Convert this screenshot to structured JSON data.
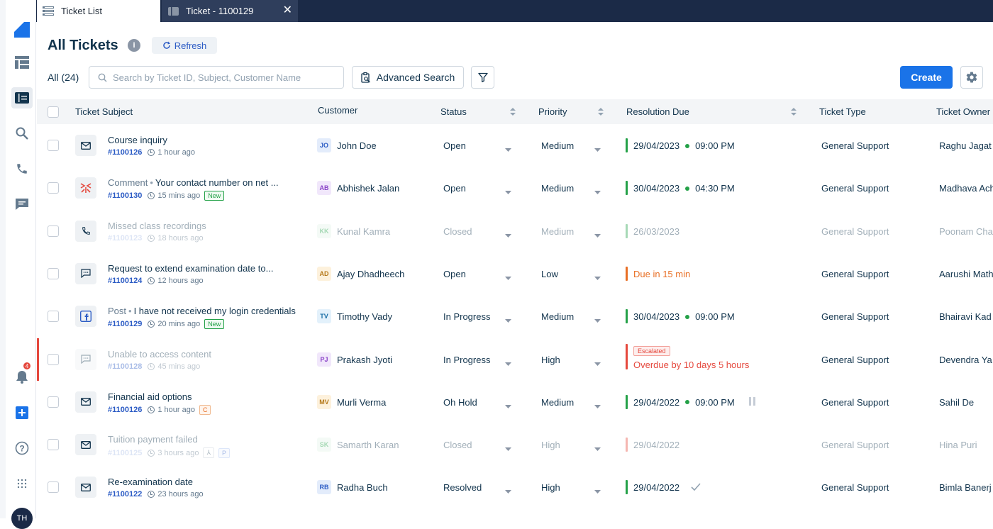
{
  "tabs": {
    "ticket_list": "Ticket List",
    "ticket_detail": "Ticket - 1100129"
  },
  "sidebar": {
    "notification_count": "4",
    "user_initials": "TH",
    "items": [
      "logo-icon",
      "dashboard-icon",
      "tickets-icon",
      "search-icon",
      "phone-icon",
      "chat-icon",
      "bell-icon",
      "add-icon",
      "help-icon",
      "apps-grid-icon"
    ]
  },
  "header": {
    "title": "All Tickets",
    "refresh_label": "Refresh",
    "count_label": "All (24)",
    "search_placeholder": "Search by Ticket ID, Subject, Customer Name",
    "advanced_search_label": "Advanced Search",
    "create_label": "Create"
  },
  "table": {
    "columns": {
      "subject": "Ticket Subject",
      "customer": "Customer",
      "status": "Status",
      "priority": "Priority",
      "due": "Resolution Due",
      "type": "Ticket Type",
      "owner": "Ticket Owner"
    },
    "rows": [
      {
        "icon": "mail-icon",
        "prefix": "",
        "subject": "Course inquiry",
        "id": "#1100126",
        "time": "1 hour ago",
        "tags": [],
        "cust_initials": "JO",
        "customer": "John Doe",
        "status": "Open",
        "priority": "Medium",
        "due_date": "29/04/2023",
        "due_time": "09:00 PM",
        "due_color": "#24a148",
        "ticket_type": "General Support",
        "owner": "Raghu Jagat"
      },
      {
        "icon": "brand-icon",
        "prefix": "Comment",
        "subject": "Your contact number on net ...",
        "id": "#1100130",
        "time": "15 mins ago",
        "tags": [
          "New"
        ],
        "cust_initials": "AB",
        "customer": "Abhishek Jalan",
        "status": "Open",
        "priority": "Medium",
        "due_date": "30/04/2023",
        "due_time": "04:30 PM",
        "due_color": "#24a148",
        "ticket_type": "General Support",
        "owner": "Madhava Ach"
      },
      {
        "icon": "phone-icon",
        "prefix": "",
        "subject": "Missed class recordings",
        "id": "#1100123",
        "time": "18 hours ago",
        "tags": [],
        "cust_initials": "KK",
        "customer": "Kunal Kamra",
        "status": "Closed",
        "priority": "Medium",
        "due_date": "26/03/2023",
        "due_time": "",
        "due_color": "#24a148",
        "ticket_type": "General Support",
        "owner": "Poonam Cha"
      },
      {
        "icon": "chat-icon",
        "prefix": "",
        "subject": "Request to extend examination date to...",
        "id": "#1100124",
        "time": "12 hours ago",
        "tags": [],
        "cust_initials": "AD",
        "customer": "Ajay Dhadheech",
        "status": "Open",
        "priority": "Low",
        "due_date": "Due in 15 min",
        "due_time": "",
        "due_color": "#e86f25",
        "ticket_type": "General Support",
        "owner": "Aarushi Math"
      },
      {
        "icon": "facebook-icon",
        "prefix": "Post",
        "subject": "I have not received my login credentials",
        "id": "#1100129",
        "time": "20 mins ago",
        "tags": [
          "New"
        ],
        "cust_initials": "TV",
        "customer": "Timothy Vady",
        "status": "In Progress",
        "priority": "Medium",
        "due_date": "30/04/2023",
        "due_time": "09:00 PM",
        "due_color": "#24a148",
        "ticket_type": "General Support",
        "owner": "Bhairavi Kad"
      },
      {
        "icon": "chat-icon",
        "prefix": "",
        "subject": "Unable to access content",
        "id": "#1100128",
        "time": "45 mins ago",
        "tags": [],
        "cust_initials": "PJ",
        "customer": "Prakash Jyoti",
        "status": "In Progress",
        "priority": "High",
        "escalated": "Escalated",
        "due_date": "Overdue by 10 days 5 hours",
        "due_time": "",
        "due_color": "#e5483d",
        "ticket_type": "General Support",
        "owner": "Devendra Ya"
      },
      {
        "icon": "mail-icon",
        "prefix": "",
        "subject": "Financial aid options",
        "id": "#1100126",
        "time": "1 hour ago",
        "tags": [
          "C"
        ],
        "cust_initials": "MV",
        "customer": "Murli Verma",
        "status": "Oh Hold",
        "priority": "Medium",
        "due_date": "29/04/2022",
        "due_time": "09:00 PM",
        "due_color": "#24a148",
        "ticket_type": "General Support",
        "owner": "Sahil De"
      },
      {
        "icon": "mail-icon",
        "prefix": "",
        "subject": "Tuition payment failed",
        "id": "#1100125",
        "time": "3 hours ago",
        "tags": [
          "merge",
          "P"
        ],
        "cust_initials": "SK",
        "customer": "Samarth Karan",
        "status": "Closed",
        "priority": "High",
        "due_date": "29/04/2022",
        "due_time": "",
        "due_color": "#e5483d",
        "ticket_type": "General Support",
        "owner": "Hina Puri"
      },
      {
        "icon": "mail-icon",
        "prefix": "",
        "subject": "Re-examination date",
        "id": "#1100122",
        "time": "23 hours ago",
        "tags": [],
        "cust_initials": "RB",
        "customer": "Radha Buch",
        "status": "Resolved",
        "priority": "High",
        "due_date": "29/04/2022",
        "due_time": "",
        "due_color": "#24a148",
        "ticket_type": "General Support",
        "owner": "Bimla Banerj"
      }
    ]
  }
}
